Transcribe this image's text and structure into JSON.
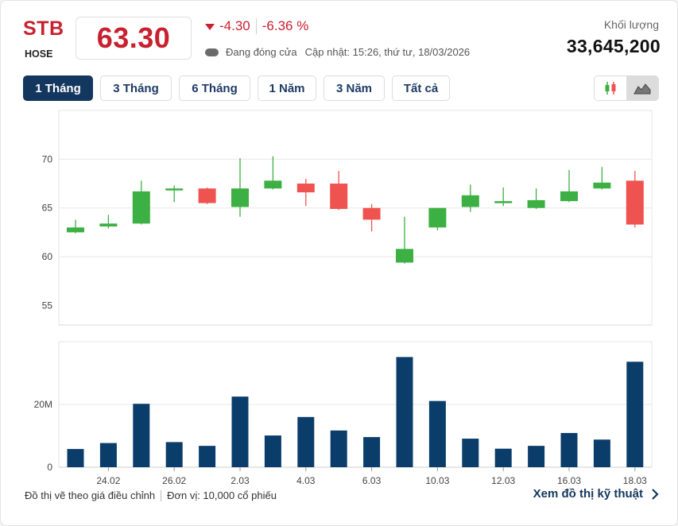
{
  "header": {
    "ticker": "STB",
    "exchange": "HOSE",
    "price": "63.30",
    "change": "-4.30",
    "change_pct": "-6.36 %",
    "status": "Đang đóng cửa",
    "updated": "Cập nhật: 15:26, thứ tư, 18/03/2026",
    "volume_label": "Khối lượng",
    "volume_value": "33,645,200"
  },
  "tabs": [
    {
      "label": "1 Tháng",
      "active": true
    },
    {
      "label": "3 Tháng",
      "active": false
    },
    {
      "label": "6 Tháng",
      "active": false
    },
    {
      "label": "1 Năm",
      "active": false
    },
    {
      "label": "3 Năm",
      "active": false
    },
    {
      "label": "Tất cả",
      "active": false
    }
  ],
  "chart_type_icons": [
    "candlestick-icon",
    "area-chart-icon"
  ],
  "colors": {
    "up": "#3cb043",
    "down": "#ef5350",
    "volume": "#0b3d6b",
    "accent": "#c8202f",
    "nav": "#14375f"
  },
  "chart_data": {
    "type": "candlestick",
    "price_axis": {
      "ylim": [
        53,
        75
      ],
      "ticks": [
        55,
        60,
        65,
        70
      ]
    },
    "volume_axis": {
      "ylim": [
        0,
        40000000
      ],
      "ticks": [
        {
          "value": 0,
          "label": "0"
        },
        {
          "value": 20000000,
          "label": "20M"
        }
      ]
    },
    "x_labels": [
      {
        "index": 1,
        "label": "24.02"
      },
      {
        "index": 3,
        "label": "26.02"
      },
      {
        "index": 5,
        "label": "2.03"
      },
      {
        "index": 7,
        "label": "4.03"
      },
      {
        "index": 9,
        "label": "6.03"
      },
      {
        "index": 11,
        "label": "10.03"
      },
      {
        "index": 13,
        "label": "12.03"
      },
      {
        "index": 15,
        "label": "16.03"
      },
      {
        "index": 17,
        "label": "18.03"
      }
    ],
    "candles": [
      {
        "open": 62.5,
        "high": 63.8,
        "low": 62.4,
        "close": 63.0,
        "volume": 5800000
      },
      {
        "open": 63.1,
        "high": 64.3,
        "low": 62.9,
        "close": 63.4,
        "volume": 7700000
      },
      {
        "open": 63.4,
        "high": 67.8,
        "low": 63.3,
        "close": 66.7,
        "volume": 20200000
      },
      {
        "open": 66.8,
        "high": 67.3,
        "low": 65.6,
        "close": 67.0,
        "volume": 8000000
      },
      {
        "open": 67.0,
        "high": 67.1,
        "low": 65.4,
        "close": 65.5,
        "volume": 6800000
      },
      {
        "open": 65.1,
        "high": 70.1,
        "low": 64.1,
        "close": 67.0,
        "volume": 22500000
      },
      {
        "open": 67.0,
        "high": 70.3,
        "low": 66.9,
        "close": 67.8,
        "volume": 10100000
      },
      {
        "open": 67.5,
        "high": 68.0,
        "low": 65.2,
        "close": 66.6,
        "volume": 16000000
      },
      {
        "open": 67.5,
        "high": 68.8,
        "low": 64.8,
        "close": 64.9,
        "volume": 11700000
      },
      {
        "open": 65.0,
        "high": 65.4,
        "low": 62.6,
        "close": 63.8,
        "volume": 9600000
      },
      {
        "open": 59.4,
        "high": 64.1,
        "low": 59.3,
        "close": 60.8,
        "volume": 35100000
      },
      {
        "open": 63.0,
        "high": 65.0,
        "low": 62.7,
        "close": 65.0,
        "volume": 21100000
      },
      {
        "open": 65.1,
        "high": 67.4,
        "low": 64.6,
        "close": 66.3,
        "volume": 9100000
      },
      {
        "open": 65.6,
        "high": 67.1,
        "low": 65.2,
        "close": 65.7,
        "volume": 5900000
      },
      {
        "open": 65.0,
        "high": 67.0,
        "low": 64.9,
        "close": 65.8,
        "volume": 6800000
      },
      {
        "open": 65.7,
        "high": 68.9,
        "low": 65.6,
        "close": 66.7,
        "volume": 10900000
      },
      {
        "open": 67.0,
        "high": 69.2,
        "low": 66.9,
        "close": 67.6,
        "volume": 8800000
      },
      {
        "open": 67.8,
        "high": 68.8,
        "low": 63.0,
        "close": 63.3,
        "volume": 33600000
      }
    ]
  },
  "footer": {
    "note": "Đồ thị vẽ theo giá điều chỉnh",
    "unit": "Đơn vị: 10,000 cổ phiếu",
    "tech_link": "Xem đồ thị kỹ thuật"
  }
}
